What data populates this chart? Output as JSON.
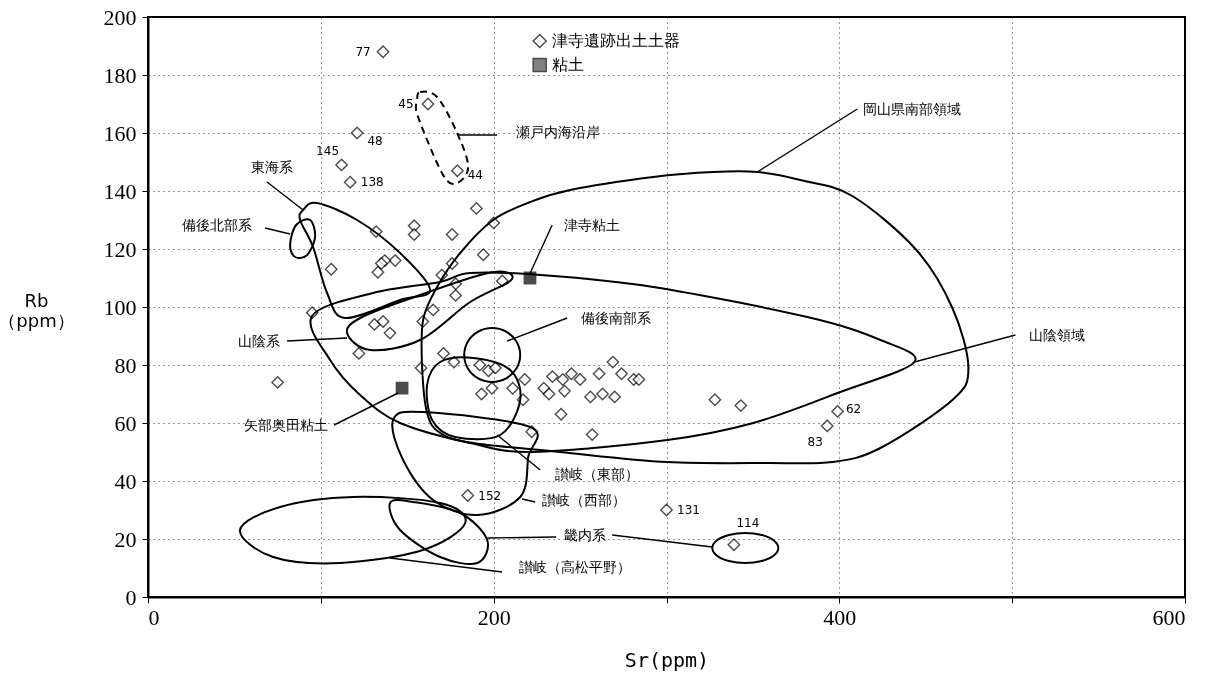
{
  "chart_data": {
    "type": "scatter",
    "xlabel": "Sr(ppm)",
    "ylabel": "Rb\n（ppm）",
    "xlim": [
      0,
      600
    ],
    "ylim": [
      0,
      200
    ],
    "xticks": [
      0,
      {
        "value": 100,
        "label": null
      },
      200,
      {
        "value": 300,
        "label": null
      },
      400,
      {
        "value": 500,
        "label": null
      },
      600
    ],
    "yticks": [
      0,
      20,
      40,
      60,
      80,
      100,
      120,
      140,
      160,
      180,
      200
    ],
    "grid": true,
    "legend": "top",
    "series": [
      {
        "name": "津寺遺跡出土土器",
        "color": "#000000",
        "marker": "diamond",
        "x": [
          136,
          162,
          121,
          112,
          117,
          179,
          190,
          200,
          132,
          154,
          154,
          176,
          194,
          106,
          143,
          137,
          135,
          133,
          176,
          170,
          178,
          205,
          178,
          95,
          165,
          131,
          136,
          140,
          159,
          122,
          75,
          171,
          177,
          158,
          192,
          197,
          201,
          218,
          193,
          199,
          211,
          217,
          222,
          185,
          234,
          240,
          245,
          250,
          229,
          232,
          241,
          261,
          269,
          274,
          281,
          284,
          256,
          263,
          270,
          239,
          257,
          328,
          343,
          300,
          339,
          393,
          399
        ],
        "values": [
          188,
          170,
          160,
          149,
          143,
          147,
          134,
          129,
          126,
          128,
          125,
          125,
          118,
          113,
          116,
          116,
          115,
          112,
          115,
          111,
          108,
          109,
          104,
          98,
          99,
          94,
          95,
          91,
          95,
          84,
          74,
          84,
          81,
          79,
          80,
          78,
          79,
          75,
          70,
          72,
          72,
          68,
          57,
          35,
          76,
          75,
          77,
          75,
          72,
          70,
          71,
          77,
          81,
          77,
          75,
          75,
          69,
          70,
          69,
          63,
          56,
          68,
          66,
          30,
          18,
          59,
          64
        ]
      },
      {
        "name": "粘土",
        "color": "#000000",
        "marker": "square",
        "x": [
          221,
          147
        ],
        "values": [
          110,
          72
        ]
      }
    ],
    "annotations": [
      {
        "text": "77",
        "x": 136,
        "y": 188
      },
      {
        "text": "45",
        "x": 162,
        "y": 170
      },
      {
        "text": "48",
        "x": 121,
        "y": 160
      },
      {
        "text": "145",
        "x": 112,
        "y": 149
      },
      {
        "text": "138",
        "x": 117,
        "y": 143
      },
      {
        "text": "44",
        "x": 179,
        "y": 147
      },
      {
        "text": "152",
        "x": 185,
        "y": 35
      },
      {
        "text": "131",
        "x": 300,
        "y": 30
      },
      {
        "text": "114",
        "x": 339,
        "y": 18
      },
      {
        "text": "83",
        "x": 393,
        "y": 59
      },
      {
        "text": "62",
        "x": 399,
        "y": 64
      },
      "瀬戸内海沿岸",
      "岡山県南部領域",
      "東海系",
      "備後北部系",
      {
        "text": "津寺粘土",
        "x": 221,
        "y": 110
      },
      "山陰領域",
      "備後南部系",
      "山陰系",
      {
        "text": "矢部奥田粘土",
        "x": 147,
        "y": 72
      },
      "讃岐（東部）",
      "讃岐（西部）",
      "畿内系",
      "讃岐（高松平野）"
    ]
  }
}
